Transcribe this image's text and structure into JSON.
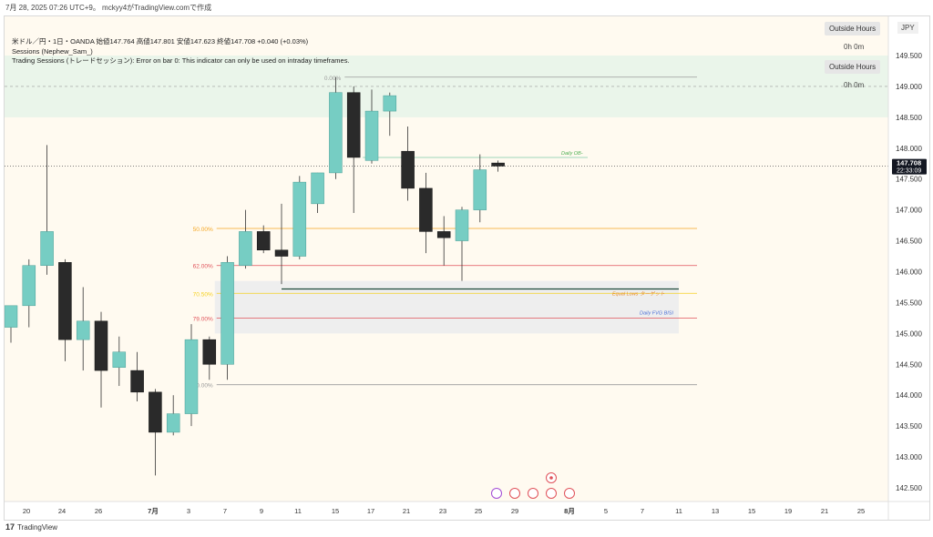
{
  "header_line": "7月 28, 2025 07:26 UTC+9。 mckyy4がTradingView.comで作成",
  "legend": {
    "symbol_line": "米ドル／円・1日・OANDA 始値147.764 高値147.801 安値147.623 終値147.708 +0.040 (+0.03%)",
    "sessions": "Sessions (Nephew_Sam_)",
    "trading_sessions": "Trading Sessions (トレードセッション): Error on bar 0: This indicator can only be used on intraday timeframes."
  },
  "session_badges": {
    "outside_hours_1": "Outside Hours",
    "time_1": "0h 0m",
    "outside_hours_2": "Outside Hours",
    "time_2": "0h 0m"
  },
  "currency": "JPY",
  "footer": {
    "brand": "TradingView",
    "logo_mark": "17"
  },
  "colors": {
    "up": "#76cdc3",
    "down": "#2a2a2a",
    "session_bg": "#eaf5ea",
    "chart_bg": "#fffaf0",
    "fvg_bg": "#eeeeee",
    "fib_50": "#f5a623",
    "fib_62": "#e0525a",
    "fib_70": "#f5d020",
    "fib_79": "#e0525a",
    "daily_ob": "#4caf50",
    "equal_lows": "#e68a2e",
    "daily_fvg": "#4a6fd8",
    "price_label_bg": "#131722"
  },
  "chart_data": {
    "type": "candlestick",
    "symbol": "USDJPY",
    "timeframe": "1D",
    "y_ticks": [
      149.5,
      149.0,
      148.5,
      148.0,
      147.5,
      147.0,
      146.5,
      146.0,
      145.5,
      145.0,
      144.5,
      144.0,
      143.5,
      143.0,
      142.5
    ],
    "y_tick_labels": [
      "149.500",
      "149.000",
      "148.500",
      "148.000",
      "147.500",
      "147.000",
      "146.500",
      "146.000",
      "145.500",
      "145.000",
      "144.500",
      "144.000",
      "143.500",
      "143.000",
      "142.500"
    ],
    "x_ticks": [
      "20",
      "24",
      "26",
      "7月",
      "3",
      "7",
      "9",
      "11",
      "15",
      "17",
      "21",
      "23",
      "25",
      "29",
      "8月",
      "5",
      "7",
      "11",
      "13",
      "15",
      "19",
      "21",
      "25"
    ],
    "candles": [
      {
        "o": 145.1,
        "h": 145.4,
        "l": 144.85,
        "c": 145.45
      },
      {
        "o": 145.45,
        "h": 146.2,
        "l": 145.1,
        "c": 146.1
      },
      {
        "o": 146.1,
        "h": 148.05,
        "l": 145.95,
        "c": 146.65
      },
      {
        "o": 146.15,
        "h": 146.2,
        "l": 144.55,
        "c": 144.9
      },
      {
        "o": 144.9,
        "h": 145.75,
        "l": 144.4,
        "c": 145.2
      },
      {
        "o": 145.2,
        "h": 145.35,
        "l": 143.8,
        "c": 144.4
      },
      {
        "o": 144.45,
        "h": 144.95,
        "l": 144.15,
        "c": 144.7
      },
      {
        "o": 144.4,
        "h": 144.7,
        "l": 143.9,
        "c": 144.05
      },
      {
        "o": 144.05,
        "h": 144.1,
        "l": 142.7,
        "c": 143.4
      },
      {
        "o": 143.4,
        "h": 144.0,
        "l": 143.35,
        "c": 143.7
      },
      {
        "o": 143.7,
        "h": 145.15,
        "l": 143.5,
        "c": 144.9
      },
      {
        "o": 144.9,
        "h": 144.95,
        "l": 144.25,
        "c": 144.5
      },
      {
        "o": 144.5,
        "h": 146.25,
        "l": 144.25,
        "c": 146.15
      },
      {
        "o": 146.1,
        "h": 147.0,
        "l": 146.05,
        "c": 146.65
      },
      {
        "o": 146.65,
        "h": 146.75,
        "l": 146.3,
        "c": 146.35
      },
      {
        "o": 146.35,
        "h": 147.1,
        "l": 145.8,
        "c": 146.25
      },
      {
        "o": 146.25,
        "h": 147.55,
        "l": 146.2,
        "c": 147.45
      },
      {
        "o": 147.1,
        "h": 147.6,
        "l": 146.95,
        "c": 147.6
      },
      {
        "o": 147.6,
        "h": 149.15,
        "l": 147.5,
        "c": 148.9
      },
      {
        "o": 148.9,
        "h": 149.0,
        "l": 146.95,
        "c": 147.85
      },
      {
        "o": 147.8,
        "h": 148.95,
        "l": 147.75,
        "c": 148.6
      },
      {
        "o": 148.6,
        "h": 148.9,
        "l": 148.2,
        "c": 148.85
      },
      {
        "o": 147.95,
        "h": 148.35,
        "l": 147.15,
        "c": 147.35
      },
      {
        "o": 147.35,
        "h": 147.6,
        "l": 146.3,
        "c": 146.65
      },
      {
        "o": 146.65,
        "h": 146.9,
        "l": 146.1,
        "c": 146.55
      },
      {
        "o": 146.5,
        "h": 147.05,
        "l": 145.85,
        "c": 147.0
      },
      {
        "o": 147.0,
        "h": 147.9,
        "l": 146.8,
        "c": 147.65
      },
      {
        "o": 147.76,
        "h": 147.8,
        "l": 147.62,
        "c": 147.71
      }
    ],
    "fib_levels": [
      {
        "label": "0.00%",
        "value": 149.15
      },
      {
        "label": "50.00%",
        "value": 146.7
      },
      {
        "label": "62.00%",
        "value": 146.1
      },
      {
        "label": "70.50%",
        "value": 145.65
      },
      {
        "label": "79.00%",
        "value": 145.25
      },
      {
        "label": "100.00%",
        "value": 144.17
      }
    ],
    "annotations": [
      {
        "label": "Daily OB-",
        "value": 147.85
      },
      {
        "label": "Equal Lows  ターゲット",
        "value": 145.72
      },
      {
        "label": "Daily FVG BISI",
        "value": 145.35
      }
    ],
    "session_zone": {
      "from": 148.5,
      "to": 149.5
    },
    "fvg_zone": {
      "from": 145.0,
      "to": 145.85
    },
    "last_price": {
      "value": 147.708,
      "label": "147.708",
      "countdown": "22:33:09"
    }
  }
}
